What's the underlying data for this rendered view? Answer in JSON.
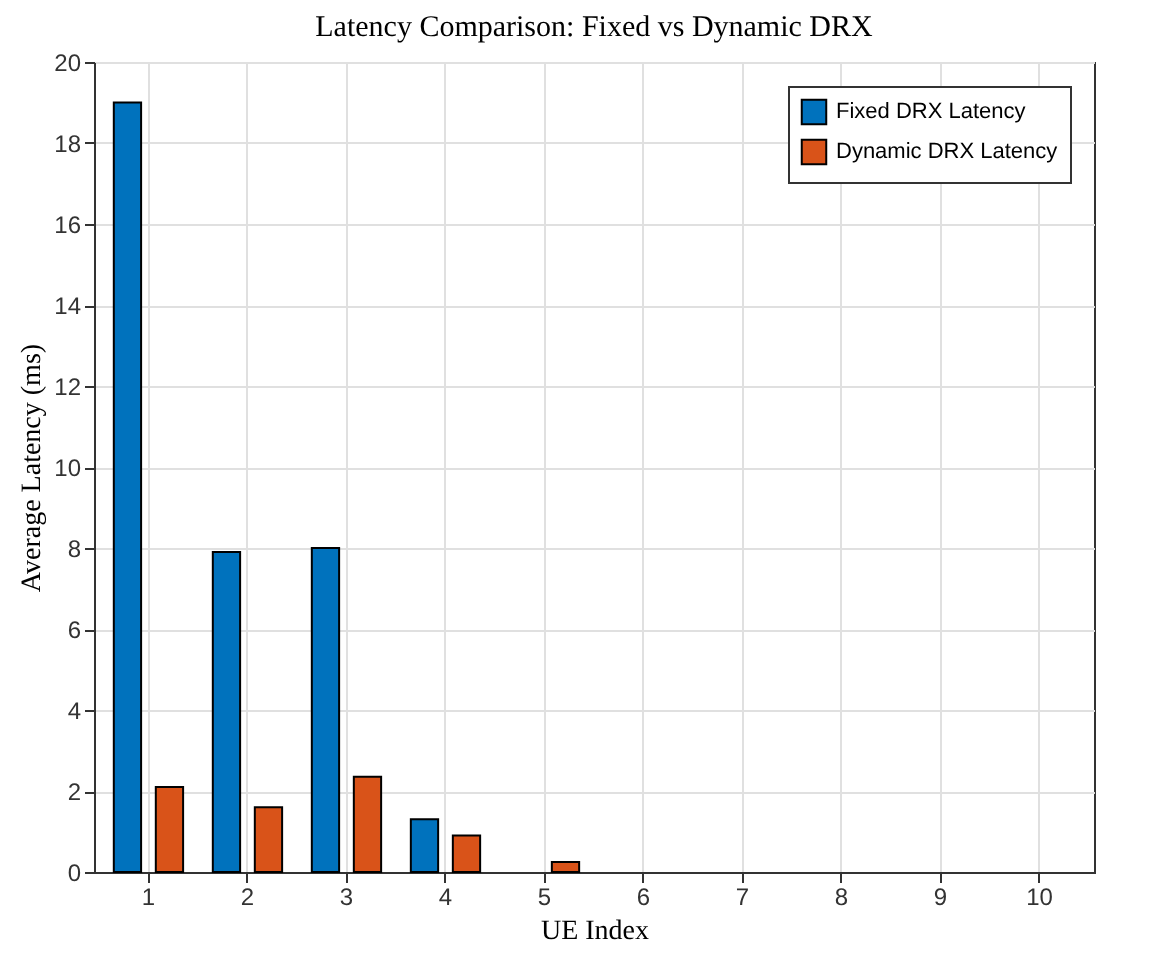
{
  "chart_data": {
    "type": "bar",
    "title": "Latency Comparison: Fixed vs Dynamic DRX",
    "xlabel": "UE Index",
    "ylabel": "Average Latency (ms)",
    "categories": [
      "1",
      "2",
      "3",
      "4",
      "5",
      "6",
      "7",
      "8",
      "9",
      "10"
    ],
    "series": [
      {
        "name": "Fixed DRX Latency",
        "color": "#0072bd",
        "values": [
          19.0,
          7.9,
          8.0,
          1.3,
          0,
          0,
          0,
          0,
          0,
          0
        ]
      },
      {
        "name": "Dynamic DRX Latency",
        "color": "#d95319",
        "values": [
          2.1,
          1.6,
          2.35,
          0.9,
          0.25,
          0,
          0,
          0,
          0,
          0
        ]
      }
    ],
    "ylim": [
      0,
      20
    ],
    "yticks": [
      0,
      2,
      4,
      6,
      8,
      10,
      12,
      14,
      16,
      18,
      20
    ],
    "grid": true,
    "legend": "top right"
  }
}
